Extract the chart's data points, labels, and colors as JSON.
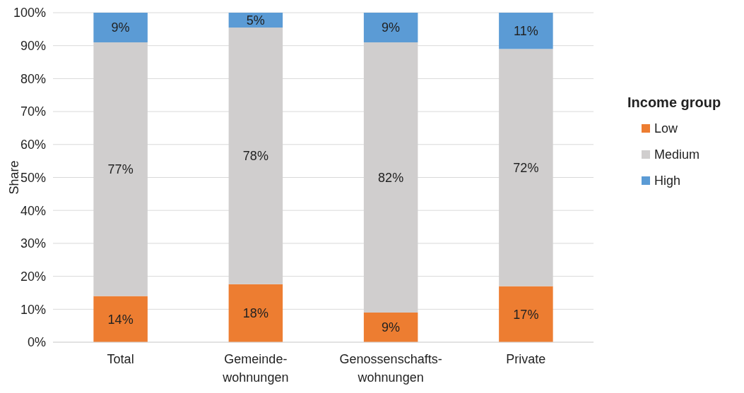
{
  "chart_data": {
    "type": "bar",
    "stacked": true,
    "ylabel": "Share",
    "legend_title": "Income group",
    "legend": "right",
    "grid": "y",
    "categories": [
      "Total",
      "Gemeinde-\nwohnungen",
      "Genossenschafts-\nwohnungen",
      "Private"
    ],
    "ylim": [
      0,
      100
    ],
    "yticks": [
      {
        "value": 0,
        "label": "0%"
      },
      {
        "value": 10,
        "label": "10%"
      },
      {
        "value": 20,
        "label": "20%"
      },
      {
        "value": 30,
        "label": "30%"
      },
      {
        "value": 40,
        "label": "40%"
      },
      {
        "value": 50,
        "label": "50%"
      },
      {
        "value": 60,
        "label": "60%"
      },
      {
        "value": 70,
        "label": "70%"
      },
      {
        "value": 80,
        "label": "80%"
      },
      {
        "value": 90,
        "label": "90%"
      },
      {
        "value": 100,
        "label": "100%"
      }
    ],
    "series": [
      {
        "name": "Low",
        "color": "#ed7d31",
        "values": [
          14,
          17.6,
          9,
          17
        ],
        "value_labels": [
          "14%",
          "18%",
          "9%",
          "17%"
        ]
      },
      {
        "name": "Medium",
        "color": "#d0cece",
        "values": [
          77,
          77.9,
          82,
          72
        ],
        "value_labels": [
          "77%",
          "78%",
          "82%",
          "72%"
        ]
      },
      {
        "name": "High",
        "color": "#5b9bd5",
        "values": [
          9,
          4.5,
          9,
          11
        ],
        "value_labels": [
          "9%",
          "5%",
          "9%",
          "11%"
        ]
      }
    ]
  }
}
